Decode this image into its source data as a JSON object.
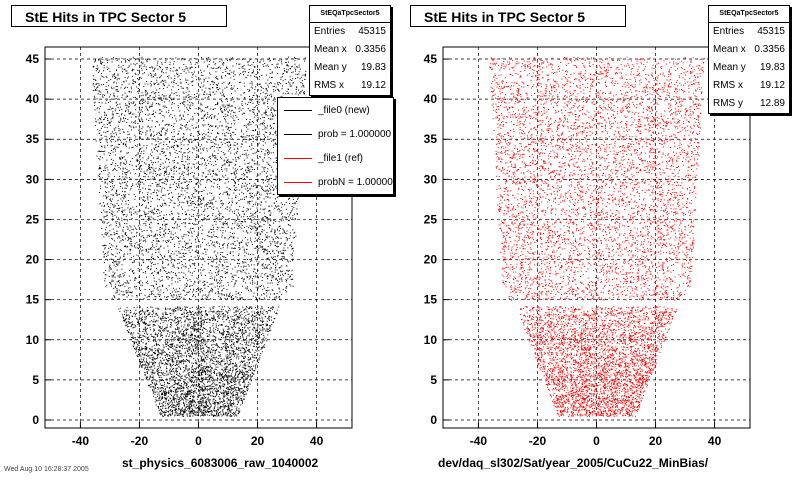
{
  "chart_data": [
    {
      "type": "scatter",
      "title": "StE Hits in TPC Sector 5",
      "xlabel": "st_physics_6083006_raw_1040002",
      "ylabel": "",
      "xlim": [
        -52,
        52
      ],
      "ylim": [
        -1,
        46.5
      ],
      "x_ticks": [
        -40,
        -20,
        0,
        20,
        40
      ],
      "y_ticks": [
        0,
        5,
        10,
        15,
        20,
        25,
        30,
        35,
        40,
        45
      ],
      "grid": true,
      "series_color": "#000000",
      "stats": {
        "header": "StEQaTpcSector5",
        "rows": [
          {
            "label": "Entries",
            "value": "45315"
          },
          {
            "label": "Mean x",
            "value": "0.3356"
          },
          {
            "label": "Mean y",
            "value": "19.83"
          },
          {
            "label": "RMS x",
            "value": "19.12"
          }
        ]
      },
      "legend": {
        "placement": "top-right",
        "entries": [
          {
            "label": "_file0 (new)",
            "color": "#000000"
          },
          {
            "label": "prob = 1.000000",
            "color": "#000000"
          },
          {
            "label": "_file1 (ref)",
            "color": "#ff0000"
          },
          {
            "label": "probN = 1.000000",
            "color": "#ff0000"
          }
        ]
      }
    },
    {
      "type": "scatter",
      "title": "StE Hits in TPC Sector 5",
      "xlabel": "dev/daq_sl302/Sat/year_2005/CuCu22_MinBias/",
      "ylabel": "",
      "xlim": [
        -52,
        52
      ],
      "ylim": [
        -1,
        46.5
      ],
      "x_ticks": [
        -40,
        -20,
        0,
        20,
        40
      ],
      "y_ticks": [
        0,
        5,
        10,
        15,
        20,
        25,
        30,
        35,
        40,
        45
      ],
      "grid": true,
      "series_color": "#ff0000",
      "stats": {
        "header": "StEQaTpcSector5",
        "rows": [
          {
            "label": "Entries",
            "value": "45315"
          },
          {
            "label": "Mean x",
            "value": "0.3356"
          },
          {
            "label": "Mean y",
            "value": "19.83"
          },
          {
            "label": "RMS x",
            "value": "19.12"
          },
          {
            "label": "RMS y",
            "value": "12.89"
          }
        ]
      }
    }
  ],
  "footer_text": "Wed Aug 10 16:28:37 2005"
}
